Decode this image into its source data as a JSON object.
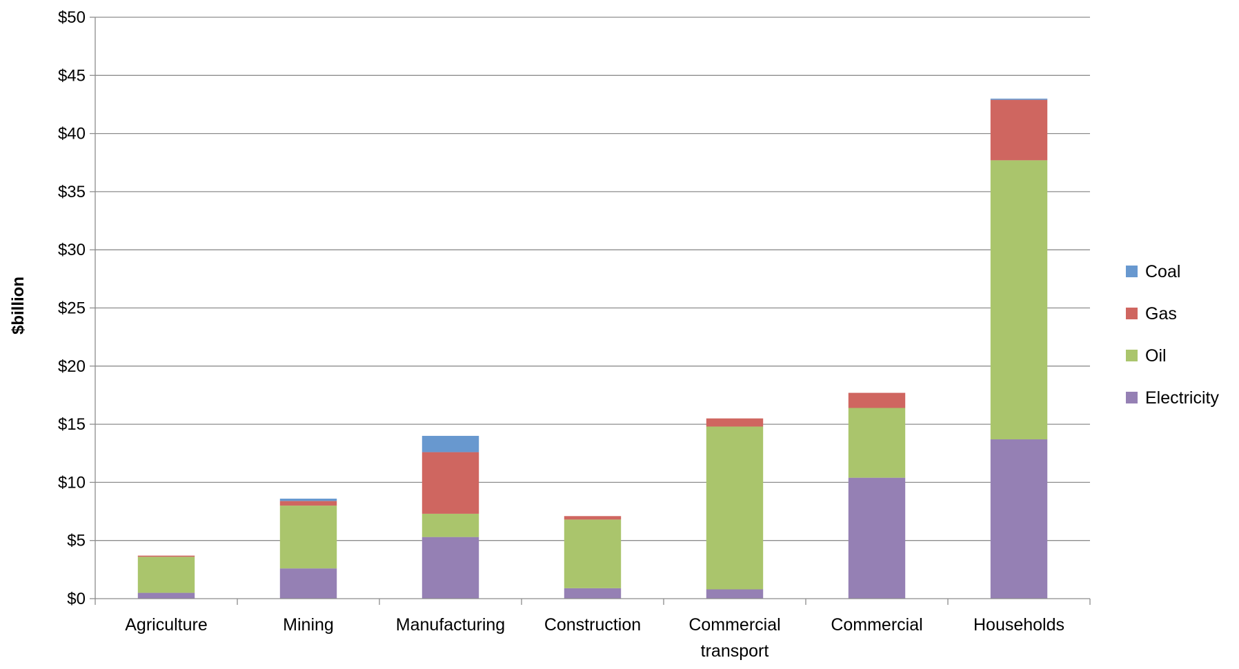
{
  "chart_data": {
    "type": "bar",
    "stacked": true,
    "title": "",
    "xlabel": "",
    "ylabel": "$billion",
    "ylim": [
      0,
      50
    ],
    "yticks": [
      0,
      5,
      10,
      15,
      20,
      25,
      30,
      35,
      40,
      45,
      50
    ],
    "ytick_labels": [
      "$0",
      "$5",
      "$10",
      "$15",
      "$20",
      "$25",
      "$30",
      "$35",
      "$40",
      "$45",
      "$50"
    ],
    "grid": true,
    "legend_position": "right",
    "categories": [
      "Agriculture",
      "Mining",
      "Manufacturing",
      "Construction",
      "Commercial transport",
      "Commercial",
      "Households"
    ],
    "series": [
      {
        "name": "Electricity",
        "color": "#9580b4",
        "values": [
          0.5,
          2.6,
          5.3,
          0.9,
          0.8,
          10.4,
          13.7
        ]
      },
      {
        "name": "Oil",
        "color": "#aac56c",
        "values": [
          3.1,
          5.4,
          2.0,
          5.9,
          14.0,
          6.0,
          24.0
        ]
      },
      {
        "name": "Gas",
        "color": "#cf6660",
        "values": [
          0.1,
          0.4,
          5.3,
          0.3,
          0.7,
          1.3,
          5.2
        ]
      },
      {
        "name": "Coal",
        "color": "#6898cf",
        "values": [
          0.0,
          0.2,
          1.4,
          0.0,
          0.0,
          0.0,
          0.1
        ]
      }
    ],
    "legend_order": [
      "Coal",
      "Gas",
      "Oil",
      "Electricity"
    ]
  }
}
